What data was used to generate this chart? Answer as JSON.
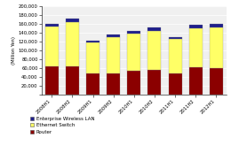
{
  "categories": [
    "2008H1",
    "2008H2",
    "2009H1",
    "2009H2",
    "2010H1",
    "2010H2",
    "2011H1",
    "2011H2",
    "2012H1"
  ],
  "router": [
    65000,
    65000,
    48000,
    48000,
    55000,
    57000,
    48000,
    62000,
    60000
  ],
  "eth_switch": [
    88000,
    98000,
    70000,
    83000,
    83000,
    88000,
    78000,
    88000,
    92000
  ],
  "wireless_lan": [
    7000,
    8000,
    5000,
    6000,
    7000,
    7000,
    5000,
    8000,
    8000
  ],
  "router_color": "#8B0000",
  "eth_switch_color": "#FFFF66",
  "wireless_lan_color": "#1F1F8B",
  "ylabel": "(Million Yen)",
  "ylim": [
    0,
    200000
  ],
  "yticks": [
    0,
    20000,
    40000,
    60000,
    80000,
    100000,
    120000,
    140000,
    160000,
    180000,
    200000
  ],
  "legend_labels": [
    "Enterprise Wireless LAN",
    "Ethernet Switch",
    "Router"
  ],
  "bg_color": "#F0F0F0",
  "grid_color": "#FFFFFF"
}
